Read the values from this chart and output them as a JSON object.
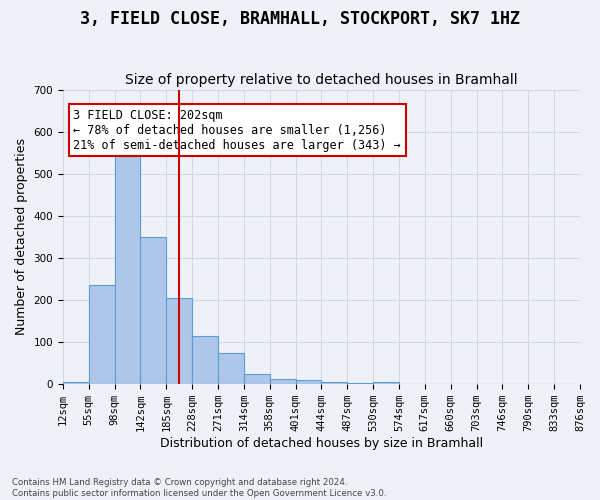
{
  "title": "3, FIELD CLOSE, BRAMHALL, STOCKPORT, SK7 1HZ",
  "subtitle": "Size of property relative to detached houses in Bramhall",
  "xlabel": "Distribution of detached houses by size in Bramhall",
  "ylabel": "Number of detached properties",
  "footer_line1": "Contains HM Land Registry data © Crown copyright and database right 2024.",
  "footer_line2": "Contains public sector information licensed under the Open Government Licence v3.0.",
  "bin_labels": [
    "12sqm",
    "55sqm",
    "98sqm",
    "142sqm",
    "185sqm",
    "228sqm",
    "271sqm",
    "314sqm",
    "358sqm",
    "401sqm",
    "444sqm",
    "487sqm",
    "530sqm",
    "574sqm",
    "617sqm",
    "660sqm",
    "703sqm",
    "746sqm",
    "790sqm",
    "833sqm",
    "876sqm"
  ],
  "bar_heights": [
    5,
    235,
    580,
    350,
    205,
    115,
    75,
    25,
    12,
    10,
    5,
    4,
    5,
    0,
    0,
    0,
    0,
    0,
    0,
    0
  ],
  "bar_color": "#aec6e8",
  "bar_edge_color": "#5a9fd4",
  "grid_color": "#d0d8e8",
  "background_color": "#eef2f8",
  "vline_x": 4.5,
  "vline_color": "#cc0000",
  "annotation_text": "3 FIELD CLOSE: 202sqm\n← 78% of detached houses are smaller (1,256)\n21% of semi-detached houses are larger (343) →",
  "annotation_box_color": "#ffffff",
  "annotation_box_edge_color": "#cc0000",
  "ylim": [
    0,
    700
  ],
  "yticks": [
    0,
    100,
    200,
    300,
    400,
    500,
    600,
    700
  ],
  "title_fontsize": 12,
  "subtitle_fontsize": 10,
  "axis_label_fontsize": 9,
  "tick_fontsize": 7.5,
  "annotation_fontsize": 8.5
}
